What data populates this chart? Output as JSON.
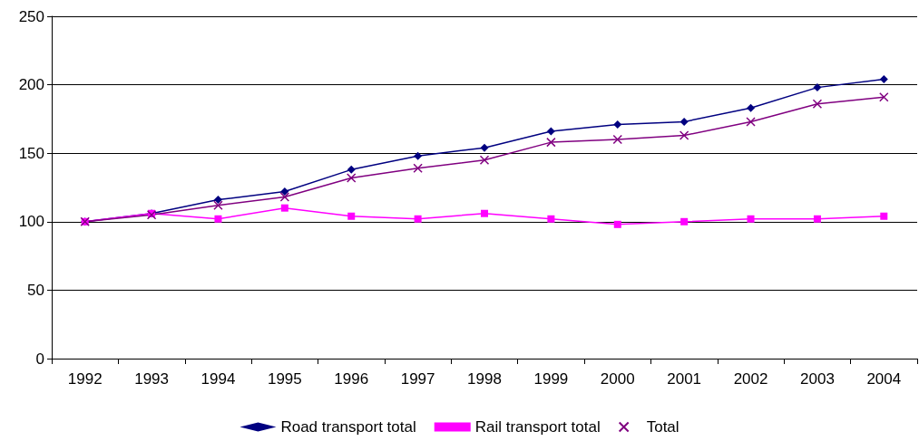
{
  "chart_data": {
    "type": "line",
    "categories": [
      "1992",
      "1993",
      "1994",
      "1995",
      "1996",
      "1997",
      "1998",
      "1999",
      "2000",
      "2001",
      "2002",
      "2003",
      "2004"
    ],
    "series": [
      {
        "name": "Road transport total",
        "color": "#000080",
        "marker": "diamond",
        "values": [
          100,
          106,
          116,
          122,
          138,
          148,
          154,
          166,
          171,
          173,
          183,
          198,
          204
        ]
      },
      {
        "name": "Rail transport total",
        "color": "#ff00ff",
        "marker": "square",
        "values": [
          100,
          106,
          102,
          110,
          104,
          102,
          106,
          102,
          98,
          100,
          102,
          102,
          104
        ]
      },
      {
        "name": "Total",
        "color": "#800080",
        "marker": "cross",
        "values": [
          100,
          105,
          112,
          118,
          132,
          139,
          145,
          158,
          160,
          163,
          173,
          186,
          191
        ]
      }
    ],
    "ylim": [
      0,
      250
    ],
    "yticks": [
      0,
      50,
      100,
      150,
      200,
      250
    ],
    "grid": "y",
    "legend": "bottom"
  }
}
